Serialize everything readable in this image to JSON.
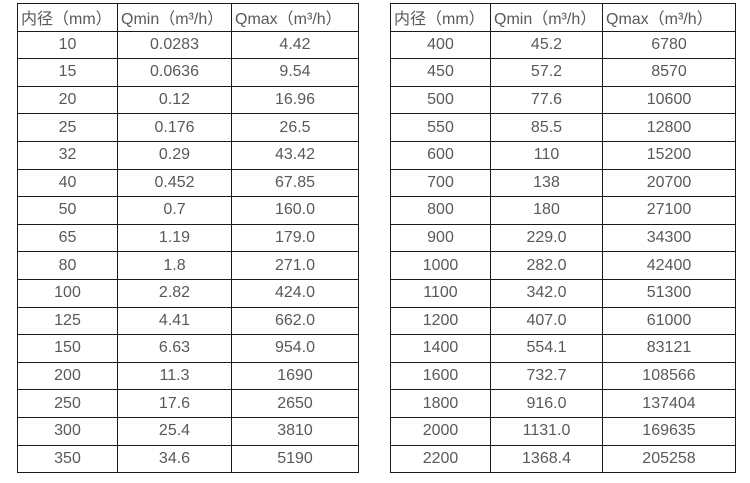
{
  "colors": {
    "border": "#1a1a1a",
    "text": "#595959",
    "background": "#ffffff"
  },
  "tables": [
    {
      "name": "small-diameters",
      "columns": [
        "内径（mm）",
        "Qmin（m³/h）",
        "Qmax（m³/h）"
      ],
      "rows": [
        [
          "10",
          "0.0283",
          "4.42"
        ],
        [
          "15",
          "0.0636",
          "9.54"
        ],
        [
          "20",
          "0.12",
          "16.96"
        ],
        [
          "25",
          "0.176",
          "26.5"
        ],
        [
          "32",
          "0.29",
          "43.42"
        ],
        [
          "40",
          "0.452",
          "67.85"
        ],
        [
          "50",
          "0.7",
          "160.0"
        ],
        [
          "65",
          "1.19",
          "179.0"
        ],
        [
          "80",
          "1.8",
          "271.0"
        ],
        [
          "100",
          "2.82",
          "424.0"
        ],
        [
          "125",
          "4.41",
          "662.0"
        ],
        [
          "150",
          "6.63",
          "954.0"
        ],
        [
          "200",
          "11.3",
          "1690"
        ],
        [
          "250",
          "17.6",
          "2650"
        ],
        [
          "300",
          "25.4",
          "3810"
        ],
        [
          "350",
          "34.6",
          "5190"
        ]
      ]
    },
    {
      "name": "large-diameters",
      "columns": [
        "内径（mm）",
        "Qmin（m³/h）",
        "Qmax（m³/h）"
      ],
      "rows": [
        [
          "400",
          "45.2",
          "6780"
        ],
        [
          "450",
          "57.2",
          "8570"
        ],
        [
          "500",
          "77.6",
          "10600"
        ],
        [
          "550",
          "85.5",
          "12800"
        ],
        [
          "600",
          "110",
          "15200"
        ],
        [
          "700",
          "138",
          "20700"
        ],
        [
          "800",
          "180",
          "27100"
        ],
        [
          "900",
          "229.0",
          "34300"
        ],
        [
          "1000",
          "282.0",
          "42400"
        ],
        [
          "1100",
          "342.0",
          "51300"
        ],
        [
          "1200",
          "407.0",
          "61000"
        ],
        [
          "1400",
          "554.1",
          "83121"
        ],
        [
          "1600",
          "732.7",
          "108566"
        ],
        [
          "1800",
          "916.0",
          "137404"
        ],
        [
          "2000",
          "1131.0",
          "169635"
        ],
        [
          "2200",
          "1368.4",
          "205258"
        ]
      ]
    }
  ]
}
